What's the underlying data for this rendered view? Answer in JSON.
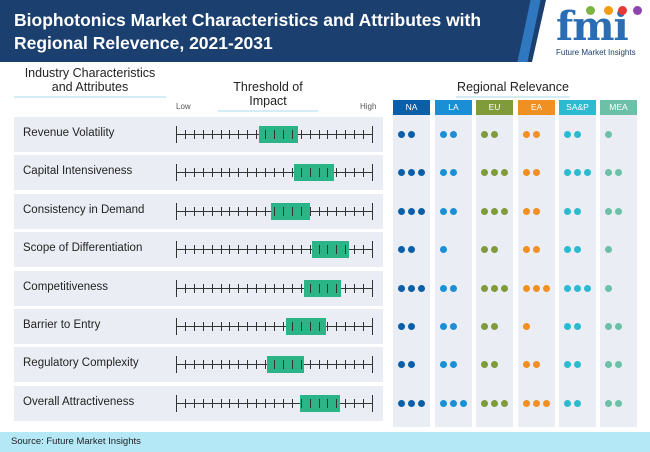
{
  "header": {
    "title": "Biophotonics Market Characteristics and Attributes with Regional Relevence, 2021-2031",
    "logo_text": "fmi",
    "logo_subtitle": "Future Market Insights"
  },
  "sections": {
    "characteristics": "Industry Characteristics and Attributes",
    "threshold": "Threshold of Impact",
    "regional": "Regional Relevance"
  },
  "scale": {
    "low": "Low",
    "high": "High"
  },
  "chart_data": {
    "type": "table",
    "regions": [
      {
        "name": "NA",
        "color": "#0b5ea8"
      },
      {
        "name": "LA",
        "color": "#1a8fd6"
      },
      {
        "name": "EU",
        "color": "#7f9b3a"
      },
      {
        "name": "EA",
        "color": "#f08f22"
      },
      {
        "name": "SA&P",
        "color": "#2bbad0"
      },
      {
        "name": "MEA",
        "color": "#6cc0a8"
      }
    ],
    "impact_color": "#2bb586",
    "rows": [
      {
        "label": "Revenue Volatility",
        "impact_range": [
          0.42,
          0.62
        ],
        "relevance": [
          2,
          2,
          2,
          2,
          2,
          1
        ]
      },
      {
        "label": "Capital Intensiveness",
        "impact_range": [
          0.6,
          0.8
        ],
        "relevance": [
          3,
          2,
          3,
          2,
          3,
          2
        ]
      },
      {
        "label": "Consistency in Demand",
        "impact_range": [
          0.48,
          0.68
        ],
        "relevance": [
          3,
          2,
          3,
          2,
          2,
          2
        ]
      },
      {
        "label": "Scope of Differentiation",
        "impact_range": [
          0.69,
          0.88
        ],
        "relevance": [
          2,
          1,
          2,
          2,
          2,
          1
        ]
      },
      {
        "label": "Competitiveness",
        "impact_range": [
          0.65,
          0.84
        ],
        "relevance": [
          3,
          2,
          3,
          3,
          3,
          1
        ]
      },
      {
        "label": "Barrier to Entry",
        "impact_range": [
          0.56,
          0.76
        ],
        "relevance": [
          2,
          2,
          2,
          1,
          2,
          2
        ]
      },
      {
        "label": "Regulatory Complexity",
        "impact_range": [
          0.46,
          0.65
        ],
        "relevance": [
          2,
          2,
          2,
          2,
          2,
          2
        ]
      },
      {
        "label": "Overall Attractiveness",
        "impact_range": [
          0.63,
          0.83
        ],
        "relevance": [
          3,
          3,
          3,
          3,
          2,
          2
        ]
      }
    ]
  },
  "footer": {
    "source": "Source: Future Market Insights"
  }
}
